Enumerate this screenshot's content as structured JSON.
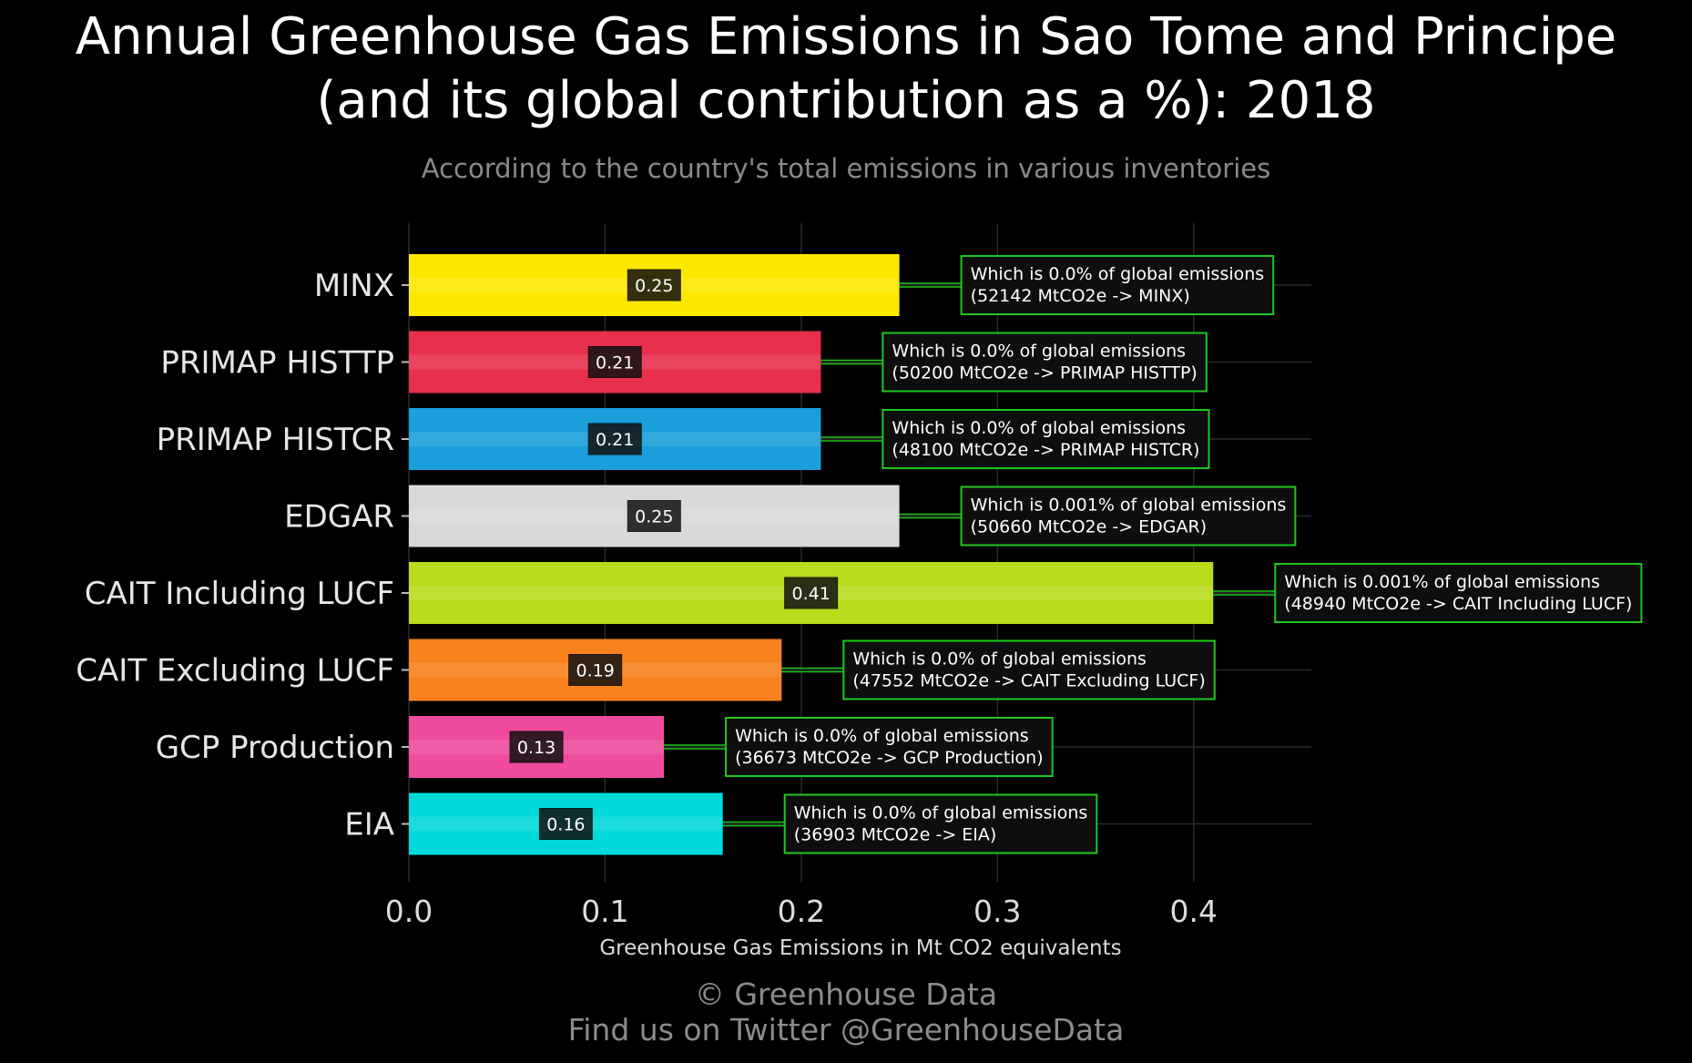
{
  "header": {
    "title_line1": "Annual Greenhouse Gas Emissions in Sao Tome and Principe",
    "title_line2": "(and its global contribution as a %): 2018",
    "subtitle": "According to the country's total emissions in various inventories"
  },
  "footer": {
    "line1": "© Greenhouse Data",
    "line2": "Find us on Twitter @GreenhouseData"
  },
  "chart_data": {
    "type": "bar",
    "orientation": "horizontal",
    "title": "Annual Greenhouse Gas Emissions in Sao Tome and Principe (and its global contribution as a %): 2018",
    "subtitle": "According to the country's total emissions in various inventories",
    "xlabel": "Greenhouse Gas Emissions in Mt CO2 equivalents",
    "ylabel": "",
    "xlim": [
      0,
      0.46
    ],
    "x_ticks": [
      "0.0",
      "0.1",
      "0.2",
      "0.3",
      "0.4"
    ],
    "x_tick_values": [
      0,
      0.1,
      0.2,
      0.3,
      0.4
    ],
    "grid": true,
    "categories": [
      "MINX",
      "PRIMAP HISTTP",
      "PRIMAP HISTCR",
      "EDGAR",
      "CAIT Including LUCF",
      "CAIT Excluding LUCF",
      "GCP Production",
      "EIA"
    ],
    "values": [
      0.25,
      0.21,
      0.21,
      0.25,
      0.41,
      0.19,
      0.13,
      0.16
    ],
    "value_labels": [
      "0.25",
      "0.21",
      "0.21",
      "0.25",
      "0.41",
      "0.19",
      "0.13",
      "0.16"
    ],
    "colors": [
      "#ffe800",
      "#e8304e",
      "#1a9fdb",
      "#d9d9d9",
      "#b9dc1c",
      "#f7821e",
      "#ee4b9c",
      "#00d9d9"
    ],
    "annotations": [
      {
        "line1": "Which is 0.0% of global emissions",
        "line2": "(52142 MtCO2e -> MINX)"
      },
      {
        "line1": "Which is 0.0% of global emissions",
        "line2": "(50200 MtCO2e -> PRIMAP HISTTP)"
      },
      {
        "line1": "Which is 0.0% of global emissions",
        "line2": "(48100 MtCO2e -> PRIMAP HISTCR)"
      },
      {
        "line1": "Which is 0.001% of global emissions",
        "line2": "(50660 MtCO2e -> EDGAR)"
      },
      {
        "line1": "Which is 0.001% of global emissions",
        "line2": "(48940 MtCO2e -> CAIT Including LUCF)"
      },
      {
        "line1": "Which is 0.0% of global emissions",
        "line2": "(47552 MtCO2e -> CAIT Excluding LUCF)"
      },
      {
        "line1": "Which is 0.0% of global emissions",
        "line2": "(36673 MtCO2e -> GCP Production)"
      },
      {
        "line1": "Which is 0.0% of global emissions",
        "line2": "(36903 MtCO2e -> EIA)"
      }
    ],
    "annotation_border_color": "#1ec81e",
    "gridline_color": "#2a2a2a",
    "background": "#000000"
  }
}
